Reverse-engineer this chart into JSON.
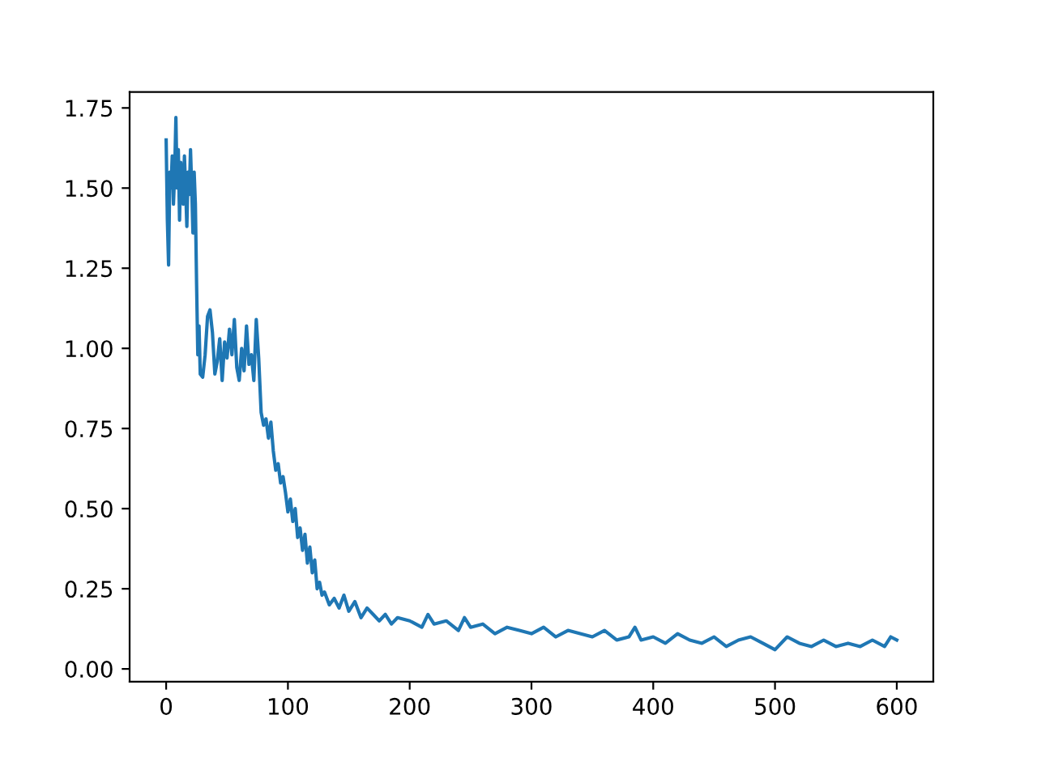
{
  "chart_data": {
    "type": "line",
    "x": [
      0,
      1,
      2,
      3,
      4,
      5,
      6,
      7,
      8,
      9,
      10,
      11,
      12,
      13,
      14,
      15,
      16,
      17,
      18,
      19,
      20,
      21,
      22,
      23,
      24,
      25,
      26,
      27,
      28,
      30,
      32,
      34,
      36,
      38,
      40,
      42,
      44,
      46,
      48,
      50,
      52,
      54,
      56,
      58,
      60,
      62,
      64,
      66,
      68,
      70,
      72,
      74,
      76,
      78,
      80,
      82,
      84,
      86,
      88,
      90,
      92,
      94,
      96,
      98,
      100,
      102,
      104,
      106,
      108,
      110,
      112,
      114,
      116,
      118,
      120,
      122,
      124,
      126,
      128,
      130,
      134,
      138,
      142,
      146,
      150,
      155,
      160,
      165,
      170,
      175,
      180,
      185,
      190,
      200,
      210,
      215,
      220,
      230,
      240,
      245,
      250,
      260,
      270,
      280,
      290,
      300,
      310,
      320,
      330,
      340,
      350,
      360,
      370,
      380,
      385,
      390,
      400,
      410,
      420,
      430,
      440,
      450,
      460,
      470,
      480,
      490,
      500,
      510,
      520,
      530,
      540,
      550,
      560,
      570,
      580,
      590,
      595,
      600
    ],
    "series": [
      {
        "color": "#1f77b4",
        "values": [
          1.65,
          1.4,
          1.26,
          1.55,
          1.5,
          1.6,
          1.45,
          1.55,
          1.72,
          1.5,
          1.62,
          1.4,
          1.58,
          1.52,
          1.45,
          1.6,
          1.5,
          1.38,
          1.55,
          1.48,
          1.62,
          1.5,
          1.36,
          1.55,
          1.45,
          1.2,
          0.98,
          1.07,
          0.92,
          0.91,
          0.98,
          1.1,
          1.12,
          1.05,
          0.92,
          0.96,
          1.03,
          0.9,
          1.02,
          0.97,
          1.06,
          0.98,
          1.09,
          0.94,
          0.9,
          1.0,
          0.93,
          1.07,
          0.95,
          0.98,
          0.9,
          1.09,
          0.97,
          0.8,
          0.76,
          0.78,
          0.72,
          0.77,
          0.68,
          0.62,
          0.64,
          0.58,
          0.6,
          0.55,
          0.49,
          0.53,
          0.46,
          0.5,
          0.41,
          0.44,
          0.37,
          0.42,
          0.33,
          0.38,
          0.3,
          0.34,
          0.25,
          0.27,
          0.23,
          0.24,
          0.2,
          0.22,
          0.19,
          0.23,
          0.18,
          0.21,
          0.16,
          0.19,
          0.17,
          0.15,
          0.17,
          0.14,
          0.16,
          0.15,
          0.13,
          0.17,
          0.14,
          0.15,
          0.12,
          0.16,
          0.13,
          0.14,
          0.11,
          0.13,
          0.12,
          0.11,
          0.13,
          0.1,
          0.12,
          0.11,
          0.1,
          0.12,
          0.09,
          0.1,
          0.13,
          0.09,
          0.1,
          0.08,
          0.11,
          0.09,
          0.08,
          0.1,
          0.07,
          0.09,
          0.1,
          0.08,
          0.06,
          0.1,
          0.08,
          0.07,
          0.09,
          0.07,
          0.08,
          0.07,
          0.09,
          0.07,
          0.1,
          0.09
        ]
      }
    ],
    "xlim": [
      -30,
      630
    ],
    "ylim": [
      -0.04,
      1.8
    ],
    "xticks": [
      0,
      100,
      200,
      300,
      400,
      500,
      600
    ],
    "yticks": [
      {
        "value": 0,
        "label": "0.00"
      },
      {
        "value": 0.25,
        "label": "0.25"
      },
      {
        "value": 0.5,
        "label": "0.50"
      },
      {
        "value": 0.75,
        "label": "0.75"
      },
      {
        "value": 1.0,
        "label": "1.00"
      },
      {
        "value": 1.25,
        "label": "1.25"
      },
      {
        "value": 1.5,
        "label": "1.50"
      },
      {
        "value": 1.75,
        "label": "1.75"
      }
    ],
    "grid": false,
    "legend": false
  }
}
